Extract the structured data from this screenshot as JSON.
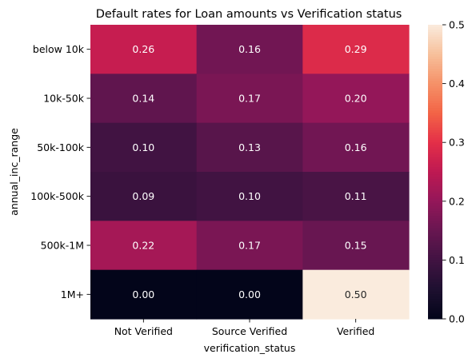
{
  "chart_data": {
    "type": "heatmap",
    "title": "Default rates for Loan amounts vs Verification status",
    "xlabel": "verification_status",
    "ylabel": "annual_inc_range",
    "x_categories": [
      "Not Verified",
      "Source Verified",
      "Verified"
    ],
    "y_categories": [
      "below 10k",
      "10k-50k",
      "50k-100k",
      "100k-500k",
      "500k-1M",
      "1M+"
    ],
    "values": [
      [
        0.26,
        0.16,
        0.29
      ],
      [
        0.14,
        0.17,
        0.2
      ],
      [
        0.1,
        0.13,
        0.16
      ],
      [
        0.09,
        0.1,
        0.11
      ],
      [
        0.22,
        0.17,
        0.15
      ],
      [
        0.0,
        0.0,
        0.5
      ]
    ],
    "value_labels": [
      [
        "0.26",
        "0.16",
        "0.29"
      ],
      [
        "0.14",
        "0.17",
        "0.20"
      ],
      [
        "0.10",
        "0.13",
        "0.16"
      ],
      [
        "0.09",
        "0.10",
        "0.11"
      ],
      [
        "0.22",
        "0.17",
        "0.15"
      ],
      [
        "0.00",
        "0.00",
        "0.50"
      ]
    ],
    "colormap": "rocket",
    "vmin": 0,
    "vmax": 0.5,
    "colorbar_ticks": [
      "0.0",
      "0.1",
      "0.2",
      "0.3",
      "0.4",
      "0.5"
    ],
    "grid": false
  }
}
